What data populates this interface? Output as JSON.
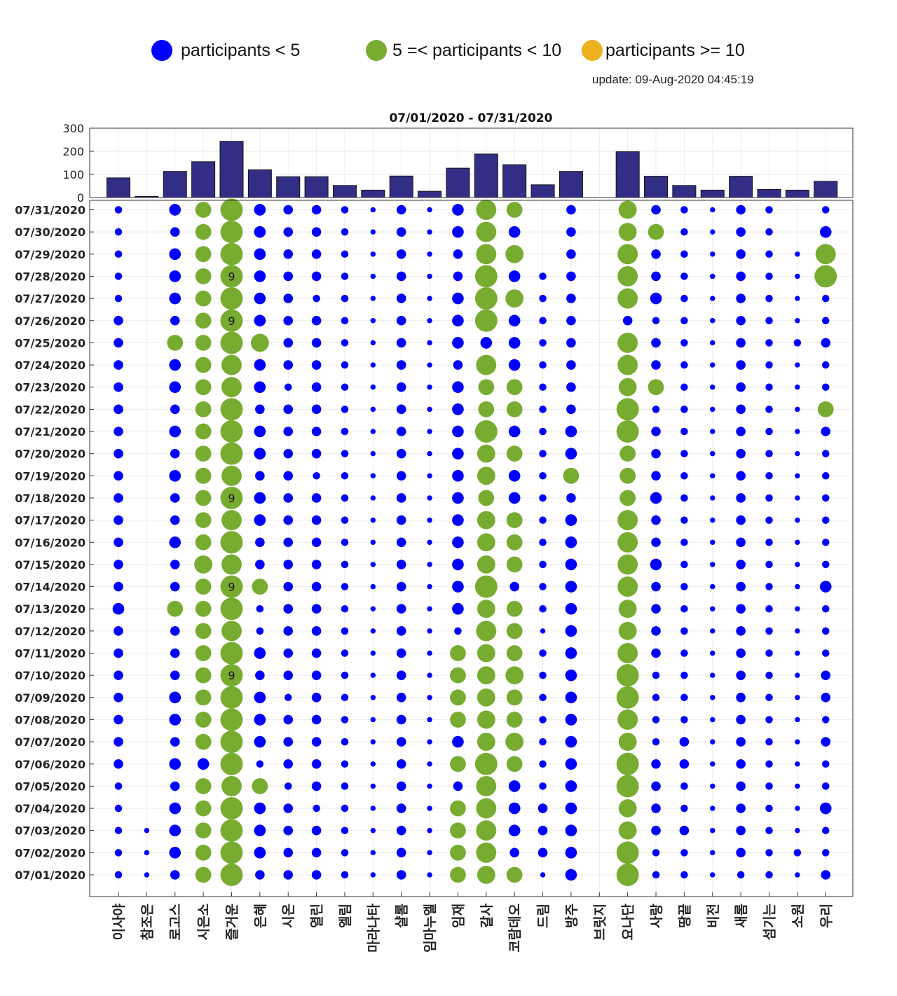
{
  "legend": {
    "low_label": "participants < 5",
    "mid_label": "5 =< participants < 10",
    "high_label": "participants >= 10"
  },
  "colors": {
    "low": "#0000ff",
    "mid": "#77ac30",
    "high": "#edb120",
    "bar": "#332e85"
  },
  "update_text": "update: 09-Aug-2020 04:45:19",
  "chart_data": [
    {
      "type": "bar",
      "title": "07/01/2020 - 07/31/2020",
      "categories": [
        "이사야",
        "참조은",
        "로고스",
        "시은소",
        "즐거운",
        "은혜",
        "시온",
        "열린",
        "엘림",
        "마라나타",
        "샬롬",
        "임마누엘",
        "임재",
        "갈사",
        "코람데오",
        "드림",
        "방주",
        "브릿지",
        "요나단",
        "사랑",
        "땅끝",
        "비전",
        "새롬",
        "섬기는",
        "소원",
        "우리"
      ],
      "values": [
        85,
        5,
        113,
        155,
        243,
        120,
        90,
        90,
        52,
        32,
        93,
        27,
        127,
        188,
        142,
        55,
        113,
        0,
        198,
        92,
        52,
        32,
        92,
        35,
        32,
        70
      ],
      "ylim": [
        0,
        300
      ],
      "yticks": [
        0,
        100,
        200,
        300
      ],
      "grid": true
    },
    {
      "type": "scatter",
      "subtype": "bubble",
      "y_categories": [
        "07/01/2020",
        "07/02/2020",
        "07/03/2020",
        "07/04/2020",
        "07/05/2020",
        "07/06/2020",
        "07/07/2020",
        "07/08/2020",
        "07/09/2020",
        "07/10/2020",
        "07/11/2020",
        "07/12/2020",
        "07/13/2020",
        "07/14/2020",
        "07/15/2020",
        "07/16/2020",
        "07/17/2020",
        "07/18/2020",
        "07/19/2020",
        "07/20/2020",
        "07/21/2020",
        "07/22/2020",
        "07/23/2020",
        "07/24/2020",
        "07/25/2020",
        "07/26/2020",
        "07/27/2020",
        "07/28/2020",
        "07/29/2020",
        "07/30/2020",
        "07/31/2020"
      ],
      "x_categories": [
        "이사야",
        "참조은",
        "로고스",
        "시은소",
        "즐거운",
        "은혜",
        "시온",
        "열린",
        "엘림",
        "마라나타",
        "샬롬",
        "임마누엘",
        "임재",
        "갈사",
        "코람데오",
        "드림",
        "방주",
        "브릿지",
        "요나단",
        "사랑",
        "땅끝",
        "비전",
        "새롬",
        "섬기는",
        "소원",
        "우리"
      ],
      "participants_rows_by_date": [
        [
          2,
          1,
          3,
          6,
          9,
          3,
          3,
          3,
          2,
          1,
          3,
          1,
          6,
          7,
          6,
          1,
          4,
          0,
          9,
          2,
          2,
          1,
          2,
          2,
          1,
          3
        ],
        [
          2,
          1,
          4,
          6,
          9,
          4,
          3,
          3,
          2,
          1,
          3,
          1,
          6,
          8,
          3,
          3,
          4,
          0,
          9,
          2,
          2,
          1,
          3,
          2,
          2,
          2
        ],
        [
          2,
          1,
          4,
          6,
          9,
          4,
          3,
          3,
          2,
          1,
          3,
          1,
          6,
          8,
          4,
          3,
          4,
          0,
          7,
          3,
          3,
          1,
          3,
          2,
          1,
          2
        ],
        [
          2,
          0,
          4,
          6,
          9,
          4,
          3,
          2,
          2,
          1,
          3,
          1,
          6,
          8,
          4,
          3,
          4,
          0,
          7,
          3,
          2,
          1,
          3,
          2,
          1,
          4
        ],
        [
          2,
          0,
          3,
          6,
          8,
          6,
          2,
          3,
          2,
          1,
          3,
          1,
          3,
          8,
          4,
          2,
          4,
          0,
          9,
          3,
          2,
          1,
          3,
          2,
          1,
          2
        ],
        [
          3,
          0,
          4,
          4,
          9,
          2,
          3,
          3,
          2,
          1,
          3,
          1,
          6,
          9,
          6,
          2,
          4,
          0,
          9,
          3,
          3,
          1,
          3,
          2,
          1,
          2
        ],
        [
          3,
          0,
          3,
          6,
          9,
          4,
          3,
          3,
          2,
          1,
          3,
          1,
          4,
          7,
          7,
          2,
          4,
          0,
          7,
          2,
          3,
          1,
          3,
          2,
          1,
          3
        ],
        [
          3,
          0,
          4,
          6,
          9,
          4,
          3,
          3,
          2,
          1,
          3,
          1,
          6,
          7,
          6,
          2,
          4,
          0,
          8,
          2,
          2,
          1,
          3,
          2,
          1,
          2
        ],
        [
          3,
          0,
          4,
          6,
          9,
          4,
          2,
          3,
          2,
          1,
          3,
          1,
          6,
          7,
          6,
          2,
          4,
          0,
          9,
          2,
          2,
          1,
          3,
          2,
          1,
          3
        ],
        [
          3,
          0,
          3,
          6,
          9,
          3,
          3,
          3,
          2,
          1,
          3,
          1,
          6,
          7,
          7,
          2,
          4,
          0,
          9,
          2,
          2,
          1,
          3,
          2,
          1,
          3
        ],
        [
          3,
          0,
          3,
          6,
          9,
          4,
          3,
          3,
          2,
          1,
          3,
          1,
          6,
          7,
          6,
          2,
          4,
          0,
          8,
          3,
          2,
          1,
          3,
          2,
          1,
          2
        ],
        [
          3,
          0,
          3,
          6,
          8,
          2,
          3,
          3,
          2,
          1,
          3,
          1,
          2,
          8,
          6,
          1,
          4,
          0,
          7,
          3,
          2,
          1,
          3,
          2,
          1,
          2
        ],
        [
          4,
          0,
          6,
          6,
          9,
          2,
          3,
          3,
          2,
          1,
          3,
          1,
          4,
          7,
          6,
          2,
          4,
          0,
          7,
          3,
          2,
          1,
          3,
          2,
          1,
          2
        ],
        [
          3,
          0,
          3,
          6,
          9,
          6,
          3,
          3,
          2,
          1,
          3,
          1,
          4,
          9,
          3,
          2,
          4,
          0,
          8,
          3,
          2,
          1,
          3,
          2,
          1,
          4
        ],
        [
          3,
          0,
          3,
          7,
          8,
          3,
          3,
          3,
          2,
          1,
          3,
          1,
          4,
          7,
          6,
          2,
          4,
          0,
          8,
          4,
          2,
          1,
          3,
          2,
          1,
          2
        ],
        [
          3,
          0,
          4,
          6,
          9,
          3,
          3,
          3,
          2,
          1,
          3,
          1,
          4,
          7,
          6,
          2,
          4,
          0,
          8,
          3,
          2,
          1,
          3,
          2,
          1,
          2
        ],
        [
          3,
          0,
          3,
          6,
          8,
          4,
          3,
          3,
          2,
          1,
          3,
          1,
          4,
          7,
          6,
          2,
          4,
          0,
          8,
          3,
          2,
          1,
          3,
          2,
          1,
          2
        ],
        [
          3,
          0,
          3,
          6,
          9,
          4,
          3,
          3,
          2,
          1,
          3,
          1,
          4,
          6,
          4,
          2,
          3,
          0,
          6,
          4,
          2,
          1,
          3,
          2,
          1,
          2
        ],
        [
          3,
          0,
          4,
          6,
          8,
          3,
          3,
          2,
          2,
          1,
          3,
          1,
          4,
          7,
          4,
          2,
          6,
          0,
          6,
          3,
          2,
          1,
          3,
          2,
          1,
          2
        ],
        [
          3,
          0,
          3,
          6,
          9,
          4,
          3,
          3,
          2,
          1,
          3,
          1,
          4,
          7,
          6,
          2,
          4,
          0,
          6,
          3,
          2,
          1,
          3,
          2,
          1,
          2
        ],
        [
          3,
          0,
          4,
          6,
          9,
          4,
          3,
          3,
          2,
          1,
          3,
          1,
          4,
          9,
          4,
          2,
          4,
          0,
          9,
          3,
          2,
          1,
          3,
          2,
          1,
          3
        ],
        [
          3,
          0,
          3,
          6,
          9,
          3,
          3,
          3,
          2,
          1,
          3,
          1,
          4,
          6,
          6,
          2,
          3,
          0,
          9,
          2,
          2,
          1,
          3,
          2,
          1,
          6
        ],
        [
          3,
          0,
          4,
          6,
          8,
          4,
          2,
          3,
          2,
          1,
          3,
          1,
          4,
          6,
          6,
          2,
          3,
          0,
          7,
          6,
          2,
          1,
          3,
          2,
          1,
          2
        ],
        [
          3,
          0,
          4,
          6,
          8,
          4,
          3,
          3,
          2,
          1,
          3,
          1,
          3,
          8,
          4,
          2,
          3,
          0,
          8,
          3,
          2,
          1,
          3,
          2,
          1,
          2
        ],
        [
          3,
          0,
          6,
          6,
          9,
          7,
          3,
          3,
          2,
          1,
          3,
          1,
          4,
          4,
          4,
          2,
          3,
          0,
          8,
          3,
          2,
          1,
          3,
          2,
          2,
          3
        ],
        [
          3,
          0,
          3,
          6,
          9,
          4,
          3,
          3,
          2,
          1,
          3,
          1,
          4,
          9,
          4,
          2,
          3,
          0,
          3,
          2,
          2,
          1,
          3,
          2,
          1,
          2
        ],
        [
          2,
          0,
          4,
          6,
          9,
          4,
          3,
          2,
          2,
          1,
          3,
          1,
          4,
          9,
          7,
          2,
          3,
          0,
          8,
          4,
          2,
          1,
          3,
          2,
          1,
          2
        ],
        [
          2,
          0,
          4,
          6,
          9,
          4,
          3,
          3,
          2,
          1,
          3,
          1,
          3,
          9,
          4,
          2,
          3,
          0,
          8,
          3,
          2,
          1,
          3,
          2,
          1,
          9
        ],
        [
          2,
          0,
          4,
          6,
          9,
          4,
          3,
          3,
          2,
          1,
          3,
          1,
          3,
          8,
          7,
          0,
          3,
          0,
          8,
          3,
          2,
          1,
          3,
          2,
          1,
          8
        ],
        [
          2,
          0,
          3,
          6,
          9,
          4,
          3,
          3,
          2,
          1,
          3,
          1,
          4,
          8,
          4,
          0,
          3,
          0,
          7,
          6,
          2,
          1,
          3,
          2,
          0,
          4
        ],
        [
          2,
          0,
          4,
          6,
          9,
          4,
          3,
          3,
          2,
          1,
          3,
          1,
          4,
          8,
          6,
          0,
          3,
          0,
          7,
          3,
          2,
          1,
          3,
          2,
          0,
          2
        ]
      ],
      "value_labels": [
        {
          "date": "07/10/2020",
          "church": "즐거운",
          "text": "9"
        },
        {
          "date": "07/14/2020",
          "church": "즐거운",
          "text": "9"
        },
        {
          "date": "07/18/2020",
          "church": "즐거운",
          "text": "9"
        },
        {
          "date": "07/26/2020",
          "church": "즐거운",
          "text": "9"
        },
        {
          "date": "07/28/2020",
          "church": "즐거운",
          "text": "9"
        }
      ],
      "grid": true
    }
  ]
}
